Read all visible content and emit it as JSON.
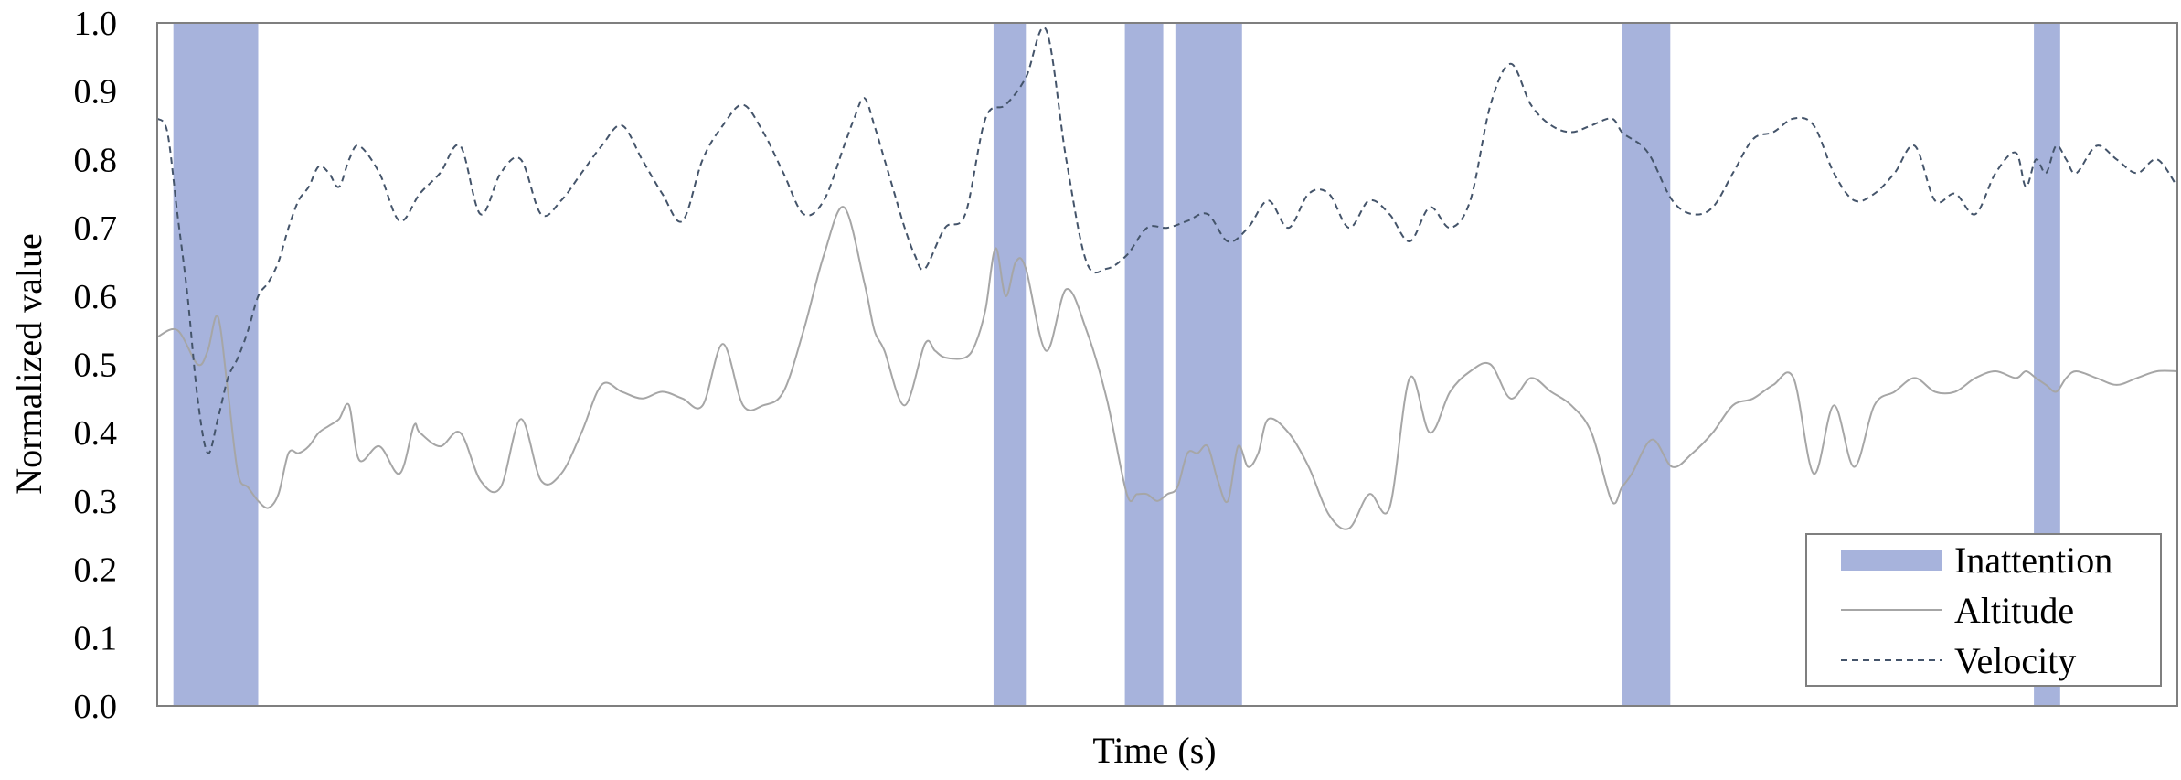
{
  "chart_data": {
    "type": "line",
    "title": "",
    "xlabel": "Time (s)",
    "ylabel": "Normalized value",
    "xlim": [
      0,
      1000
    ],
    "ylim": [
      0,
      1
    ],
    "y_ticks": [
      "0.0",
      "0.1",
      "0.2",
      "0.3",
      "0.4",
      "0.5",
      "0.6",
      "0.7",
      "0.8",
      "0.9",
      "1.0"
    ],
    "x_ticks": [],
    "grid": false,
    "legend": {
      "position": "bottom-right"
    },
    "colors": {
      "inattention": "#a7b3dc",
      "altitude": "#a6a6a6",
      "velocity": "#44546a",
      "axes": "#7f7f7f"
    },
    "inattention": {
      "name": "Inattention",
      "intervals": [
        [
          8,
          50
        ],
        [
          414,
          430
        ],
        [
          479,
          498
        ],
        [
          504,
          537
        ],
        [
          725,
          749
        ],
        [
          929,
          942
        ]
      ]
    },
    "series": [
      {
        "name": "Altitude",
        "style": "solid",
        "x": [
          0,
          10,
          20,
          25,
          30,
          35,
          40,
          45,
          50,
          55,
          60,
          65,
          70,
          75,
          80,
          85,
          90,
          95,
          100,
          110,
          120,
          127,
          130,
          140,
          150,
          160,
          170,
          180,
          190,
          200,
          210,
          220,
          230,
          240,
          250,
          260,
          270,
          280,
          290,
          300,
          310,
          320,
          330,
          340,
          350,
          355,
          360,
          370,
          380,
          385,
          390,
          400,
          405,
          410,
          415,
          420,
          425,
          430,
          440,
          450,
          460,
          470,
          480,
          485,
          490,
          495,
          500,
          505,
          510,
          515,
          520,
          525,
          530,
          535,
          540,
          545,
          550,
          560,
          570,
          580,
          590,
          600,
          610,
          620,
          630,
          640,
          650,
          660,
          670,
          680,
          690,
          700,
          710,
          720,
          725,
          730,
          740,
          750,
          760,
          770,
          780,
          790,
          800,
          810,
          820,
          830,
          840,
          850,
          860,
          870,
          880,
          890,
          900,
          910,
          920,
          925,
          930,
          935,
          940,
          945,
          950,
          960,
          970,
          980,
          990,
          1000
        ],
        "values": [
          0.54,
          0.55,
          0.5,
          0.52,
          0.57,
          0.46,
          0.34,
          0.32,
          0.3,
          0.29,
          0.31,
          0.37,
          0.37,
          0.38,
          0.4,
          0.41,
          0.42,
          0.44,
          0.36,
          0.38,
          0.34,
          0.41,
          0.4,
          0.38,
          0.4,
          0.33,
          0.32,
          0.42,
          0.33,
          0.34,
          0.4,
          0.47,
          0.46,
          0.45,
          0.46,
          0.45,
          0.44,
          0.53,
          0.44,
          0.44,
          0.46,
          0.55,
          0.66,
          0.73,
          0.62,
          0.55,
          0.52,
          0.44,
          0.53,
          0.52,
          0.51,
          0.51,
          0.53,
          0.58,
          0.67,
          0.6,
          0.65,
          0.64,
          0.52,
          0.61,
          0.55,
          0.45,
          0.31,
          0.31,
          0.31,
          0.3,
          0.31,
          0.32,
          0.37,
          0.37,
          0.38,
          0.33,
          0.3,
          0.38,
          0.35,
          0.37,
          0.42,
          0.4,
          0.35,
          0.28,
          0.26,
          0.31,
          0.29,
          0.48,
          0.4,
          0.46,
          0.49,
          0.5,
          0.45,
          0.48,
          0.46,
          0.44,
          0.4,
          0.3,
          0.32,
          0.34,
          0.39,
          0.35,
          0.37,
          0.4,
          0.44,
          0.45,
          0.47,
          0.48,
          0.34,
          0.44,
          0.35,
          0.44,
          0.46,
          0.48,
          0.46,
          0.46,
          0.48,
          0.49,
          0.48,
          0.49,
          0.48,
          0.47,
          0.46,
          0.48,
          0.49,
          0.48,
          0.47,
          0.48,
          0.49,
          0.49
        ]
      },
      {
        "name": "Velocity",
        "style": "dashed",
        "x": [
          0,
          5,
          10,
          15,
          20,
          25,
          30,
          35,
          40,
          45,
          50,
          55,
          60,
          65,
          70,
          75,
          80,
          85,
          90,
          95,
          100,
          110,
          120,
          130,
          140,
          150,
          160,
          170,
          180,
          190,
          200,
          210,
          220,
          230,
          240,
          250,
          260,
          270,
          280,
          290,
          300,
          310,
          320,
          330,
          340,
          345,
          350,
          355,
          360,
          365,
          370,
          375,
          380,
          390,
          400,
          410,
          420,
          430,
          440,
          450,
          460,
          470,
          480,
          490,
          500,
          510,
          520,
          530,
          540,
          550,
          560,
          570,
          580,
          590,
          600,
          610,
          620,
          630,
          640,
          650,
          660,
          670,
          680,
          690,
          700,
          710,
          720,
          725,
          730,
          735,
          740,
          750,
          760,
          770,
          780,
          790,
          800,
          810,
          820,
          830,
          840,
          850,
          860,
          870,
          880,
          890,
          900,
          910,
          920,
          925,
          930,
          935,
          940,
          945,
          950,
          960,
          970,
          980,
          990,
          1000
        ],
        "values": [
          0.86,
          0.84,
          0.72,
          0.6,
          0.45,
          0.37,
          0.42,
          0.48,
          0.51,
          0.55,
          0.6,
          0.62,
          0.65,
          0.7,
          0.74,
          0.76,
          0.79,
          0.78,
          0.76,
          0.8,
          0.82,
          0.78,
          0.71,
          0.75,
          0.78,
          0.82,
          0.72,
          0.78,
          0.8,
          0.72,
          0.74,
          0.78,
          0.82,
          0.85,
          0.8,
          0.75,
          0.71,
          0.8,
          0.85,
          0.88,
          0.84,
          0.78,
          0.72,
          0.74,
          0.82,
          0.86,
          0.89,
          0.85,
          0.8,
          0.75,
          0.7,
          0.66,
          0.64,
          0.7,
          0.72,
          0.86,
          0.88,
          0.92,
          0.99,
          0.8,
          0.65,
          0.64,
          0.66,
          0.7,
          0.7,
          0.71,
          0.72,
          0.68,
          0.7,
          0.74,
          0.7,
          0.75,
          0.75,
          0.7,
          0.74,
          0.72,
          0.68,
          0.73,
          0.7,
          0.74,
          0.88,
          0.94,
          0.88,
          0.85,
          0.84,
          0.85,
          0.86,
          0.84,
          0.83,
          0.82,
          0.8,
          0.74,
          0.72,
          0.73,
          0.78,
          0.83,
          0.84,
          0.86,
          0.85,
          0.78,
          0.74,
          0.75,
          0.78,
          0.82,
          0.74,
          0.75,
          0.72,
          0.78,
          0.81,
          0.76,
          0.8,
          0.78,
          0.82,
          0.8,
          0.78,
          0.82,
          0.8,
          0.78,
          0.8,
          0.76
        ]
      }
    ]
  }
}
